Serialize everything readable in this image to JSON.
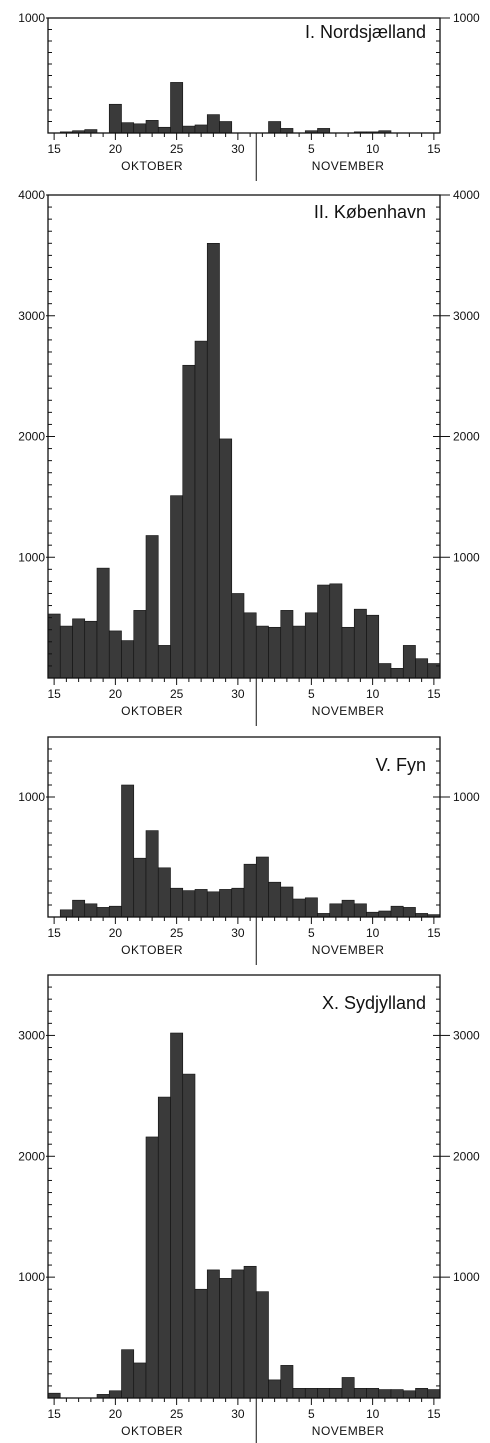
{
  "chart_data": [
    {
      "type": "bar",
      "title": "I. Nordsjælland",
      "ylim": [
        0,
        1000
      ],
      "yticks_labeled": [
        "1000"
      ],
      "x_tick_labels": [
        "15",
        "20",
        "25",
        "30",
        "5",
        "10",
        "15"
      ],
      "month_labels": [
        "OKTOBER",
        "NOVEMBER"
      ],
      "x": [
        "15 Okt",
        "16 Okt",
        "17 Okt",
        "18 Okt",
        "19 Okt",
        "20 Okt",
        "21 Okt",
        "22 Okt",
        "23 Okt",
        "24 Okt",
        "25 Okt",
        "26 Okt",
        "27 Okt",
        "28 Okt",
        "29 Okt",
        "30 Okt",
        "31 Okt",
        "1 Nov",
        "2 Nov",
        "3 Nov",
        "4 Nov",
        "5 Nov",
        "6 Nov",
        "7 Nov",
        "8 Nov",
        "9 Nov",
        "10 Nov",
        "11 Nov",
        "12 Nov",
        "13 Nov",
        "14 Nov",
        "15 Nov"
      ],
      "values": [
        0,
        10,
        20,
        30,
        0,
        250,
        90,
        80,
        110,
        50,
        440,
        60,
        70,
        160,
        100,
        0,
        0,
        0,
        100,
        40,
        0,
        20,
        40,
        0,
        0,
        10,
        10,
        20,
        0,
        0,
        0,
        0
      ]
    },
    {
      "type": "bar",
      "title": "II. København",
      "ylim": [
        0,
        4000
      ],
      "yticks_labeled": [
        "1000",
        "2000",
        "3000",
        "4000"
      ],
      "x_tick_labels": [
        "15",
        "20",
        "25",
        "30",
        "5",
        "10",
        "15"
      ],
      "month_labels": [
        "OKTOBER",
        "NOVEMBER"
      ],
      "x": [
        "15 Okt",
        "16 Okt",
        "17 Okt",
        "18 Okt",
        "19 Okt",
        "20 Okt",
        "21 Okt",
        "22 Okt",
        "23 Okt",
        "24 Okt",
        "25 Okt",
        "26 Okt",
        "27 Okt",
        "28 Okt",
        "29 Okt",
        "30 Okt",
        "31 Okt",
        "1 Nov",
        "2 Nov",
        "3 Nov",
        "4 Nov",
        "5 Nov",
        "6 Nov",
        "7 Nov",
        "8 Nov",
        "9 Nov",
        "10 Nov",
        "11 Nov",
        "12 Nov",
        "13 Nov",
        "14 Nov",
        "15 Nov"
      ],
      "values": [
        530,
        430,
        490,
        470,
        910,
        390,
        310,
        560,
        1180,
        270,
        1510,
        2590,
        2790,
        3600,
        1980,
        700,
        540,
        430,
        420,
        560,
        430,
        540,
        770,
        780,
        420,
        570,
        520,
        120,
        80,
        270,
        160,
        120
      ]
    },
    {
      "type": "bar",
      "title": "V. Fyn",
      "ylim": [
        0,
        1500
      ],
      "yticks_labeled": [
        "1000"
      ],
      "x_tick_labels": [
        "15",
        "20",
        "25",
        "30",
        "5",
        "10",
        "15"
      ],
      "month_labels": [
        "OKTOBER",
        "NOVEMBER"
      ],
      "x": [
        "15 Okt",
        "16 Okt",
        "17 Okt",
        "18 Okt",
        "19 Okt",
        "20 Okt",
        "21 Okt",
        "22 Okt",
        "23 Okt",
        "24 Okt",
        "25 Okt",
        "26 Okt",
        "27 Okt",
        "28 Okt",
        "29 Okt",
        "30 Okt",
        "31 Okt",
        "1 Nov",
        "2 Nov",
        "3 Nov",
        "4 Nov",
        "5 Nov",
        "6 Nov",
        "7 Nov",
        "8 Nov",
        "9 Nov",
        "10 Nov",
        "11 Nov",
        "12 Nov",
        "13 Nov",
        "14 Nov",
        "15 Nov"
      ],
      "values": [
        0,
        60,
        140,
        110,
        80,
        90,
        1100,
        490,
        720,
        410,
        240,
        220,
        230,
        210,
        230,
        240,
        440,
        500,
        290,
        250,
        150,
        160,
        30,
        110,
        140,
        110,
        40,
        50,
        90,
        80,
        30,
        20
      ]
    },
    {
      "type": "bar",
      "title": "X. Sydjylland",
      "ylim": [
        0,
        3500
      ],
      "yticks_labeled": [
        "1000",
        "2000",
        "3000"
      ],
      "x_tick_labels": [
        "15",
        "20",
        "25",
        "30",
        "5",
        "10",
        "15"
      ],
      "month_labels": [
        "OKTOBER",
        "NOVEMBER"
      ],
      "x": [
        "15 Okt",
        "16 Okt",
        "17 Okt",
        "18 Okt",
        "19 Okt",
        "20 Okt",
        "21 Okt",
        "22 Okt",
        "23 Okt",
        "24 Okt",
        "25 Okt",
        "26 Okt",
        "27 Okt",
        "28 Okt",
        "29 Okt",
        "30 Okt",
        "31 Okt",
        "1 Nov",
        "2 Nov",
        "3 Nov",
        "4 Nov",
        "5 Nov",
        "6 Nov",
        "7 Nov",
        "8 Nov",
        "9 Nov",
        "10 Nov",
        "11 Nov",
        "12 Nov",
        "13 Nov",
        "14 Nov",
        "15 Nov"
      ],
      "values": [
        40,
        0,
        0,
        0,
        30,
        60,
        400,
        290,
        2160,
        2490,
        3020,
        2680,
        900,
        1060,
        990,
        1060,
        1090,
        880,
        150,
        270,
        80,
        80,
        80,
        80,
        170,
        80,
        80,
        70,
        70,
        60,
        80,
        70
      ]
    }
  ]
}
